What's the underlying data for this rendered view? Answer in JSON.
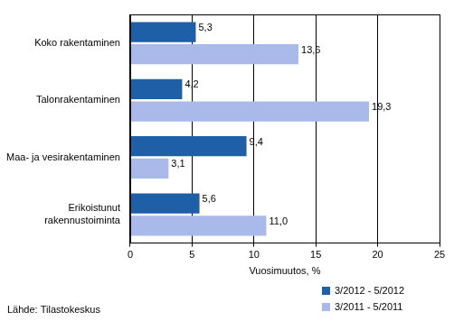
{
  "chart_data": {
    "type": "bar",
    "orientation": "horizontal",
    "categories": [
      "Koko rakentaminen",
      "Talonrakentaminen",
      "Maa- ja vesirakentaminen",
      "Erikoistunut rakennustoiminta"
    ],
    "series": [
      {
        "name": "3/2012 - 5/2012",
        "color": "#1f5fa8",
        "values": [
          5.3,
          4.2,
          9.4,
          5.6
        ],
        "value_labels": [
          "5,3",
          "4,2",
          "9,4",
          "5,6"
        ]
      },
      {
        "name": "3/2011 - 5/2011",
        "color": "#a9b9e9",
        "values": [
          13.6,
          19.3,
          3.1,
          11.0
        ],
        "value_labels": [
          "13,6",
          "19,3",
          "3,1",
          "11,0"
        ]
      }
    ],
    "x_label": "Vuosimuutos, %",
    "source": "Lähde: Tilastokeskus",
    "xlim": [
      0,
      25
    ],
    "xticks": [
      0,
      5,
      10,
      15,
      20,
      25
    ],
    "grid": true,
    "data_labels": true,
    "legend": "bottom-right"
  }
}
